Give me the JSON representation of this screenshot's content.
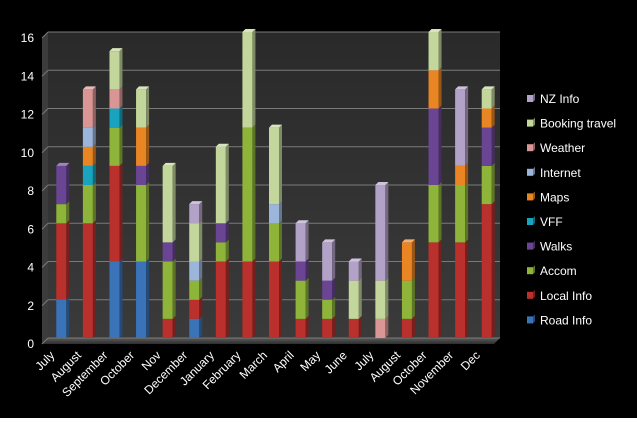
{
  "chart_data": {
    "type": "bar",
    "stacked": true,
    "title": "",
    "xlabel": "",
    "ylabel": "",
    "ylim": [
      0,
      16
    ],
    "yticks": [
      0,
      2,
      4,
      6,
      8,
      10,
      12,
      14,
      16
    ],
    "grid": true,
    "legend_position": "right",
    "categories": [
      "July",
      "August",
      "September",
      "October",
      "Nov",
      "December",
      "January",
      "February",
      "March",
      "April",
      "May",
      "June",
      "July",
      "August",
      "October",
      "November",
      "Dec"
    ],
    "series": [
      {
        "name": "Road Info",
        "color": "#3b73b9",
        "values": [
          2,
          0,
          4,
          4,
          0,
          1,
          0,
          0,
          0,
          0,
          0,
          0,
          0,
          0,
          0,
          0,
          0
        ]
      },
      {
        "name": "Local Info",
        "color": "#b9302c",
        "values": [
          4,
          6,
          5,
          0,
          1,
          1,
          4,
          4,
          4,
          1,
          1,
          1,
          0,
          1,
          5,
          5,
          7
        ]
      },
      {
        "name": "Accom",
        "color": "#8fb43a",
        "values": [
          1,
          2,
          2,
          4,
          3,
          1,
          1,
          7,
          2,
          2,
          1,
          0,
          0,
          2,
          3,
          3,
          2
        ]
      },
      {
        "name": "Walks",
        "color": "#6a4593",
        "values": [
          2,
          0,
          0,
          1,
          1,
          0,
          1,
          0,
          0,
          1,
          1,
          0,
          0,
          0,
          4,
          0,
          2
        ]
      },
      {
        "name": "VFF",
        "color": "#1aa3be",
        "values": [
          0,
          1,
          1,
          0,
          0,
          0,
          0,
          0,
          0,
          0,
          0,
          0,
          0,
          0,
          0,
          0,
          0
        ]
      },
      {
        "name": "Maps",
        "color": "#ea8524",
        "values": [
          0,
          1,
          0,
          2,
          0,
          0,
          0,
          0,
          0,
          0,
          0,
          0,
          0,
          2,
          2,
          1,
          1
        ]
      },
      {
        "name": "Internet",
        "color": "#9bb5db",
        "values": [
          0,
          1,
          0,
          0,
          0,
          1,
          0,
          0,
          1,
          0,
          0,
          0,
          0,
          0,
          0,
          0,
          0
        ]
      },
      {
        "name": "Weather",
        "color": "#d99694",
        "values": [
          0,
          2,
          1,
          0,
          0,
          0,
          0,
          0,
          0,
          0,
          0,
          0,
          1,
          0,
          0,
          0,
          0
        ]
      },
      {
        "name": "Booking travel",
        "color": "#c3d69b",
        "values": [
          0,
          0,
          2,
          2,
          4,
          2,
          4,
          5,
          4,
          0,
          0,
          2,
          2,
          0,
          2,
          0,
          1
        ]
      },
      {
        "name": "NZ Info",
        "color": "#b3a2c7",
        "values": [
          0,
          0,
          0,
          0,
          0,
          1,
          0,
          0,
          0,
          2,
          2,
          1,
          5,
          0,
          0,
          4,
          0
        ]
      }
    ]
  }
}
